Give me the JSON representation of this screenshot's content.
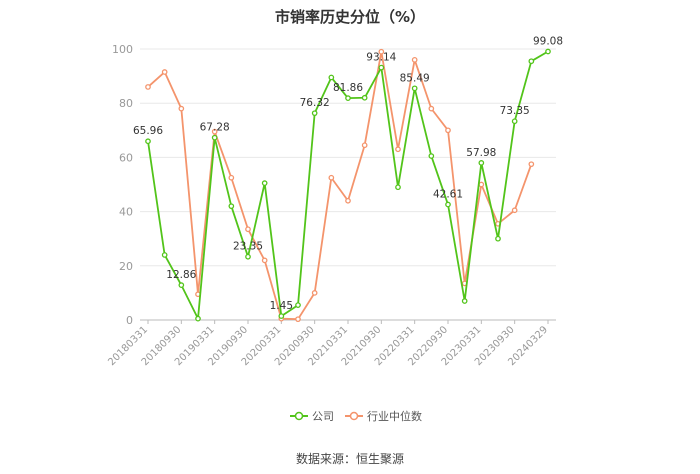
{
  "chart_data": {
    "type": "line",
    "title": "市销率历史分位（%）",
    "source": "数据来源：恒生聚源",
    "ylim": [
      0,
      100
    ],
    "yticks": [
      0,
      20,
      40,
      60,
      80,
      100
    ],
    "x_tick_labels": [
      "20180331",
      "20180930",
      "20190331",
      "20190930",
      "20200331",
      "20200930",
      "20210331",
      "20210930",
      "20220331",
      "20220930",
      "20230331",
      "20230930",
      "20240329"
    ],
    "x": [
      "20180331",
      "20180630",
      "20180930",
      "20181231",
      "20190331",
      "20190630",
      "20190930",
      "20191231",
      "20200331",
      "20200630",
      "20200930",
      "20201231",
      "20210331",
      "20210630",
      "20210930",
      "20211231",
      "20220331",
      "20220630",
      "20220930",
      "20221231",
      "20230331",
      "20230630",
      "20230930",
      "20231231",
      "20240329"
    ],
    "series": [
      {
        "name": "公司",
        "color": "#52c41a",
        "values": [
          65.96,
          24,
          12.86,
          0.5,
          67.28,
          42,
          23.35,
          50.5,
          1.45,
          5.5,
          76.32,
          89.5,
          81.86,
          82,
          93.14,
          49,
          85.49,
          60.5,
          42.61,
          7,
          57.98,
          30,
          73.35,
          95.5,
          99.08
        ],
        "labels": {
          "0": "65.96",
          "2": "12.86",
          "4": "67.28",
          "6": "23.35",
          "8": "1.45",
          "10": "76.32",
          "12": "81.86",
          "14": "93.14",
          "16": "85.49",
          "18": "42.61",
          "20": "57.98",
          "22": "73.35",
          "24": "99.08"
        }
      },
      {
        "name": "行业中位数",
        "color": "#f4946c",
        "values": [
          86,
          91.5,
          78,
          9.5,
          69.5,
          52.5,
          33.5,
          22,
          0.5,
          0.3,
          10,
          52.5,
          44,
          64.5,
          99,
          63,
          96,
          78,
          70,
          13.5,
          50,
          35.5,
          40.5,
          57.5,
          null
        ]
      }
    ],
    "legend_position": "bottom"
  }
}
